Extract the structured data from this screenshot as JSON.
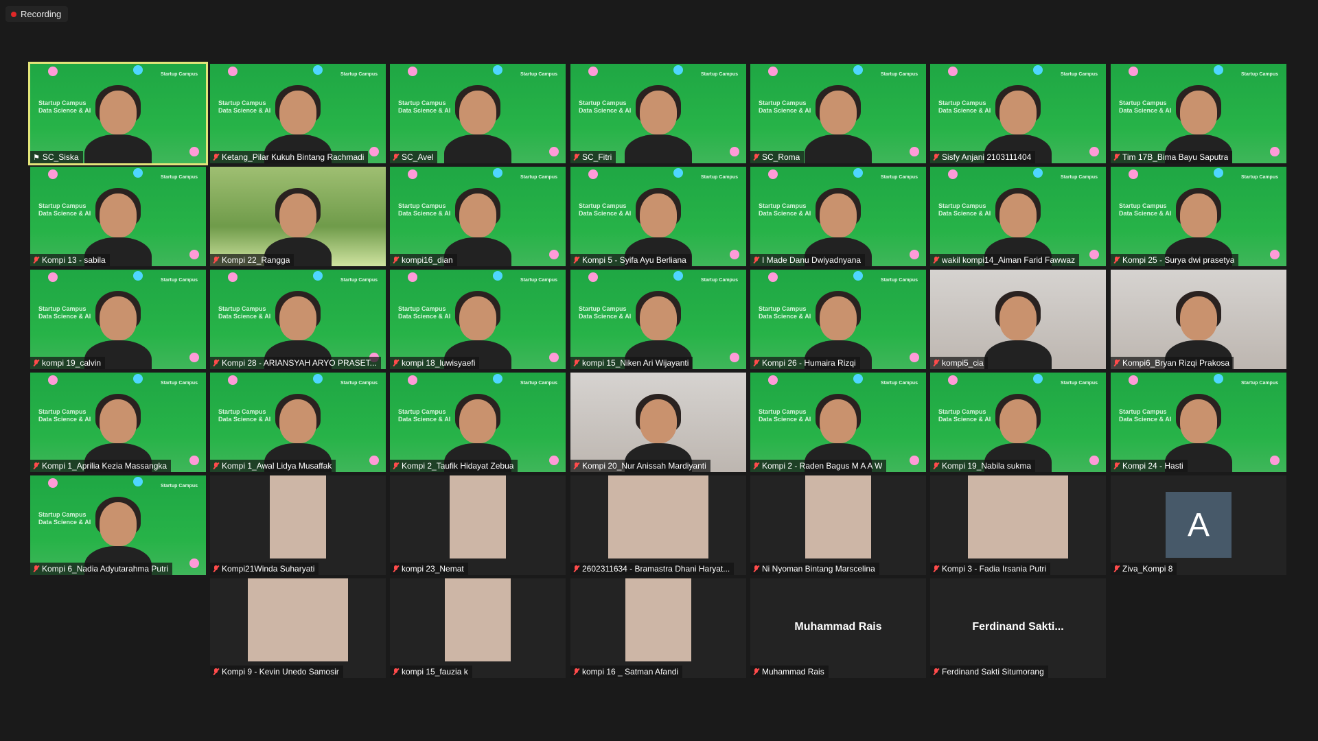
{
  "recording": {
    "label": "Recording"
  },
  "tile_brand": {
    "line1": "Startup Campus",
    "line2": "Data Science & AI",
    "logo": "Startup Campus"
  },
  "colors": {
    "speaking_outline": "#e3e57a",
    "mic_muted": "#ff4b4b",
    "tile_bg": "#232323",
    "green_bg": "#27b348"
  },
  "participants": [
    {
      "name": "SC_Siska",
      "video": "green",
      "icon": "pin-icon",
      "speaking": true
    },
    {
      "name": "Ketang_Pilar Kukuh Bintang Rachmadi",
      "video": "green",
      "icon": "mic-muted-icon"
    },
    {
      "name": "SC_Avel",
      "video": "green",
      "icon": "mic-muted-icon"
    },
    {
      "name": "SC_Fitri",
      "video": "green",
      "icon": "mic-muted-icon"
    },
    {
      "name": "SC_Roma",
      "video": "green",
      "icon": "mic-muted-icon"
    },
    {
      "name": "Sisfy Anjani 2103111404",
      "video": "green",
      "icon": "mic-muted-icon"
    },
    {
      "name": "Tim 17B_Bima Bayu Saputra",
      "video": "green",
      "icon": "mic-muted-icon"
    },
    {
      "name": "Kompi 13 - sabila",
      "video": "green",
      "icon": "mic-muted-icon"
    },
    {
      "name": "Kompi 22_Rangga",
      "video": "nature",
      "icon": "mic-muted-icon"
    },
    {
      "name": "kompi16_dian",
      "video": "green",
      "icon": "mic-muted-icon"
    },
    {
      "name": "Kompi 5 - Syifa Ayu Berliana",
      "video": "green",
      "icon": "mic-muted-icon"
    },
    {
      "name": "I Made Danu Dwiyadnyana",
      "video": "green",
      "icon": "mic-muted-icon"
    },
    {
      "name": "wakil kompi14_Aiman Farid Fawwaz",
      "video": "green",
      "icon": "mic-muted-icon"
    },
    {
      "name": "Kompi 25 - Surya dwi prasetya",
      "video": "green",
      "icon": "mic-muted-icon"
    },
    {
      "name": "kompi 19_calvin",
      "video": "green",
      "icon": "mic-muted-icon"
    },
    {
      "name": "Kompi 28 - ARIANSYAH ARYO PRASET...",
      "video": "green",
      "icon": "mic-muted-icon"
    },
    {
      "name": "kompi 18_luwisyaefi",
      "video": "green",
      "icon": "mic-muted-icon"
    },
    {
      "name": "kompi 15_Niken Ari Wijayanti",
      "video": "green",
      "icon": "mic-muted-icon"
    },
    {
      "name": "Kompi 26 - Humaira Rizqi",
      "video": "green",
      "icon": "mic-muted-icon"
    },
    {
      "name": "kompi5_cia",
      "video": "photo",
      "icon": "mic-muted-icon"
    },
    {
      "name": "Kompi6_Bryan Rizqi Prakosa",
      "video": "photo",
      "icon": "mic-muted-icon"
    },
    {
      "name": "Kompi 1_Aprilia Kezia Massangka",
      "video": "green",
      "icon": "mic-muted-icon"
    },
    {
      "name": "Kompi 1_Awal Lidya Musaffak",
      "video": "green",
      "icon": "mic-muted-icon"
    },
    {
      "name": "Kompi 2_Taufik Hidayat Zebua",
      "video": "green",
      "icon": "mic-muted-icon"
    },
    {
      "name": "Kompi 20_Nur Anissah Mardiyanti",
      "video": "photo",
      "icon": "mic-muted-icon"
    },
    {
      "name": "Kompi 2 - Raden Bagus M A A W",
      "video": "green",
      "icon": "mic-muted-icon"
    },
    {
      "name": "Kompi 19_Nabila sukma",
      "video": "green",
      "icon": "mic-muted-icon"
    },
    {
      "name": "Kompi 24 - Hasti",
      "video": "green",
      "icon": "mic-muted-icon"
    },
    {
      "name": "Kompi 6_Nadia Adyutarahma Putri",
      "video": "green",
      "icon": "mic-muted-icon"
    },
    {
      "name": "Kompi21Winda Suharyati",
      "video": "thumb",
      "icon": "mic-muted-icon"
    },
    {
      "name": "kompi 23_Nemat",
      "video": "thumb",
      "icon": "mic-muted-icon"
    },
    {
      "name": "2602311634 - Bramastra Dhani Haryat...",
      "video": "thumb",
      "icon": "mic-muted-icon"
    },
    {
      "name": "Ni Nyoman Bintang Marscelina",
      "video": "thumb",
      "icon": "mic-muted-icon"
    },
    {
      "name": "Kompi 3 - Fadia Irsania Putri",
      "video": "thumb",
      "icon": "mic-muted-icon"
    },
    {
      "name": "Ziva_Kompi 8",
      "video": "letter",
      "letter": "A",
      "icon": "mic-muted-icon"
    },
    {
      "name": "Kompi 9 - Kevin Unedo Samosir",
      "video": "thumb",
      "icon": "mic-muted-icon"
    },
    {
      "name": "kompi 15_fauzia k",
      "video": "thumb",
      "icon": "mic-muted-icon"
    },
    {
      "name": "kompi 16 _ Satman Afandi",
      "video": "thumb",
      "icon": "mic-muted-icon"
    },
    {
      "name": "Muhammad Rais",
      "video": "none",
      "display_name": "Muhammad Rais",
      "icon": "mic-muted-icon"
    },
    {
      "name": "Ferdinand Sakti Situmorang",
      "video": "none",
      "display_name": "Ferdinand  Sakti...",
      "icon": "mic-muted-icon"
    }
  ]
}
